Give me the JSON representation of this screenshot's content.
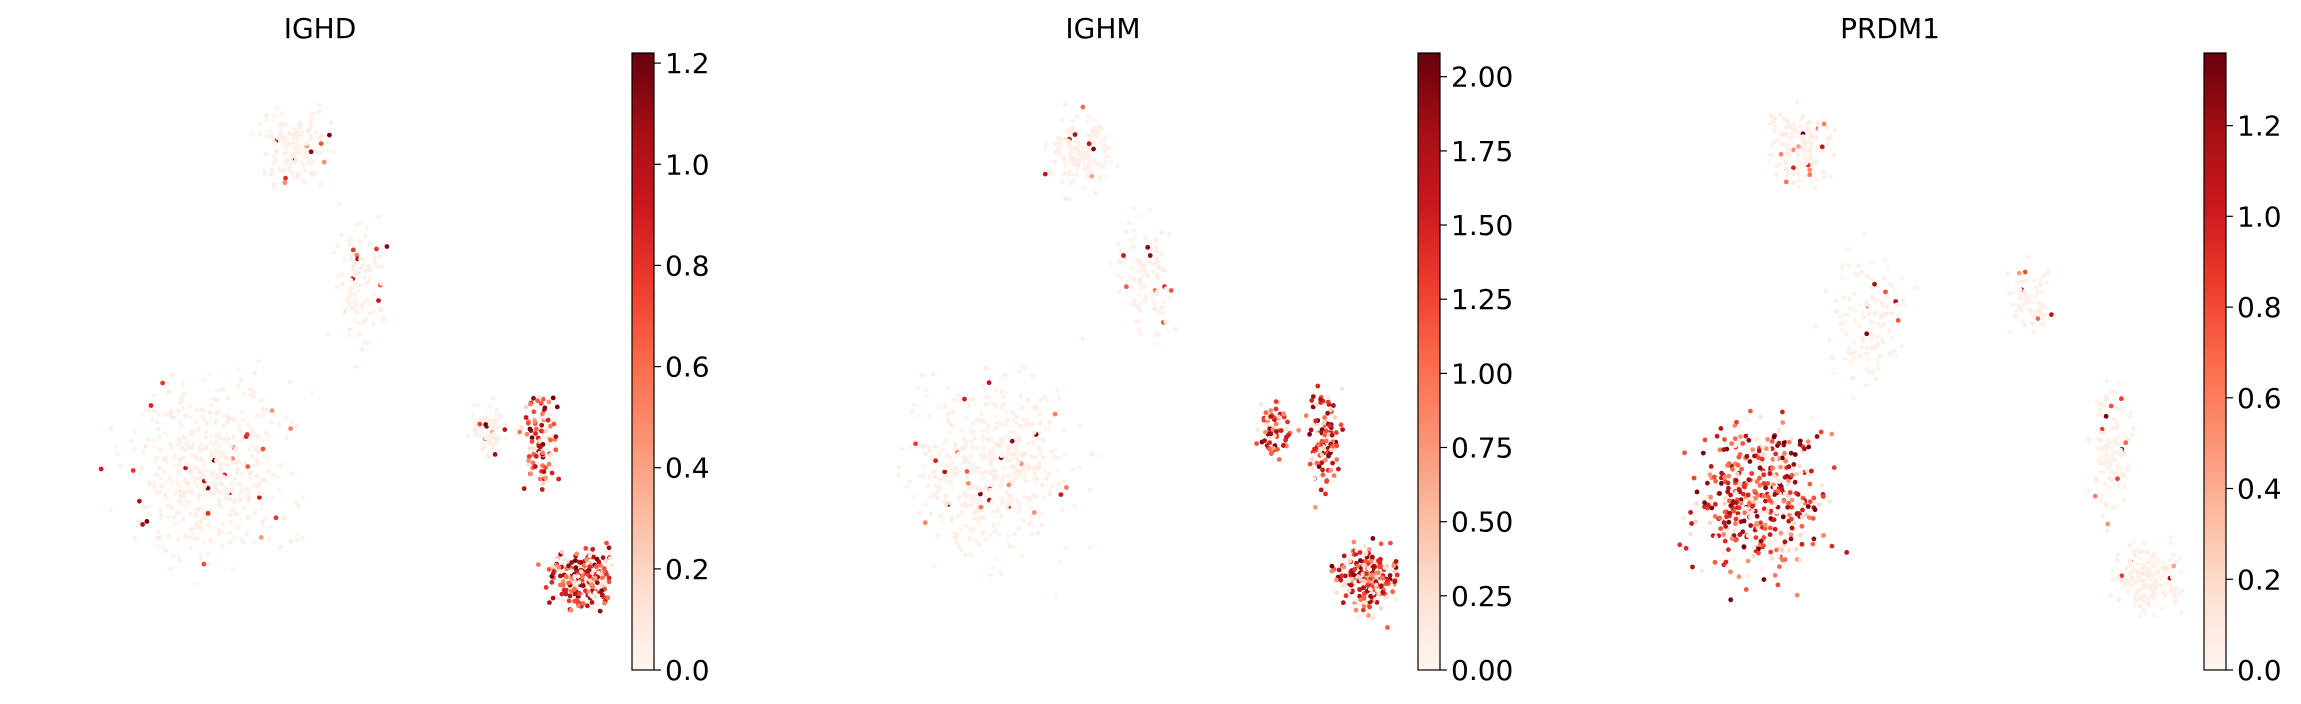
{
  "chart_data": [
    {
      "type": "scatter",
      "title": "IGHD",
      "xlabel": "",
      "ylabel": "",
      "colormap": "Reds",
      "colorbar": {
        "min": 0,
        "max": 1.22,
        "ticks": [
          "0.0",
          "0.2",
          "0.4",
          "0.6",
          "0.8",
          "1.0",
          "1.2"
        ],
        "tick_values": [
          0,
          0.2,
          0.4,
          0.6,
          0.8,
          1.0,
          1.2
        ]
      },
      "high_expression_region": "bottom-right cluster"
    },
    {
      "type": "scatter",
      "title": "IGHM",
      "xlabel": "",
      "ylabel": "",
      "colormap": "Reds",
      "colorbar": {
        "min": 0,
        "max": 2.08,
        "ticks": [
          "0.00",
          "0.25",
          "0.50",
          "0.75",
          "1.00",
          "1.25",
          "1.50",
          "1.75",
          "2.00"
        ],
        "tick_values": [
          0,
          0.25,
          0.5,
          0.75,
          1.0,
          1.25,
          1.5,
          1.75,
          2.0
        ]
      },
      "high_expression_region": "right cluster and bottom-right cluster"
    },
    {
      "type": "scatter",
      "title": "PRDM1",
      "xlabel": "",
      "ylabel": "",
      "colormap": "Reds",
      "colorbar": {
        "min": 0,
        "max": 1.36,
        "ticks": [
          "0.0",
          "0.2",
          "0.4",
          "0.6",
          "0.8",
          "1.0",
          "1.2"
        ],
        "tick_values": [
          0,
          0.2,
          0.4,
          0.6,
          0.8,
          1.0,
          1.2
        ]
      },
      "high_expression_region": "left cluster"
    }
  ],
  "colors": {
    "reds_low": "#fff5f0",
    "reds_mid_low": "#fcbba1",
    "reds_mid": "#fb6a4a",
    "reds_mid_high": "#cb181d",
    "reds_high": "#67000d"
  }
}
